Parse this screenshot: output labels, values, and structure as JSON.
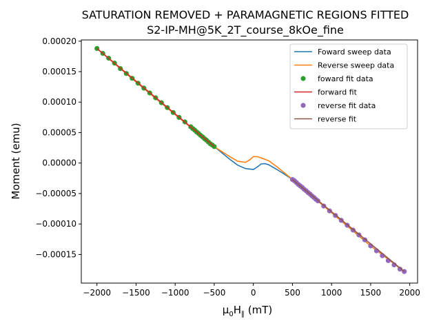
{
  "chart_data": {
    "type": "line",
    "title": "SATURATION REMOVED + PARAMAGNETIC REGIONS FITTED",
    "subtitle": "S2-IP-MH@5K_2T_course_8kOe_fine",
    "xlabel_main": "μ",
    "xlabel_sub0": "0",
    "xlabel_mid": "H",
    "xlabel_sub1": "∥",
    "xlabel_unit": " (mT)",
    "ylabel": "Moment (emu)",
    "xlim": [
      -2200,
      2100
    ],
    "ylim": [
      -0.000197,
      0.000202
    ],
    "xticks": [
      -2000,
      -1500,
      -1000,
      -500,
      0,
      500,
      1000,
      1500,
      2000
    ],
    "xtick_labels": [
      "−2000",
      "−1500",
      "−1000",
      "−500",
      "0",
      "500",
      "1000",
      "1500",
      "2000"
    ],
    "yticks": [
      0.0002,
      0.00015,
      0.0001,
      5e-05,
      0,
      -5e-05,
      -0.0001,
      -0.00015
    ],
    "ytick_labels": [
      "0.00020",
      "0.00015",
      "0.00010",
      "0.00005",
      "0.00000",
      "−0.00005",
      "−0.00010",
      "−0.00015"
    ],
    "grid": false,
    "legend_position": "top-right",
    "colors": {
      "forward_data": "#1f77b4",
      "reverse_data": "#ff7f0e",
      "forward_fit_points": "#2ca02c",
      "forward_fit": "#d62728",
      "reverse_fit_points": "#9467bd",
      "reverse_fit": "#8c564b"
    },
    "series": [
      {
        "name": "Foward sweep data",
        "kind": "line",
        "x": [
          -2000,
          -1500,
          -1000,
          -500,
          -400,
          -300,
          -200,
          -100,
          0,
          50,
          100,
          150,
          200,
          300,
          400,
          500,
          1000,
          1500,
          1930
        ],
        "y": [
          0.000188,
          0.000133,
          7.95e-05,
          2.7e-05,
          1.65e-05,
          6e-06,
          -3.5e-06,
          -9e-06,
          -1.05e-05,
          -6.5e-06,
          -1.5e-06,
          -1e-06,
          -3e-06,
          -1.05e-05,
          -1.85e-05,
          -2.7e-05,
          -8.15e-05,
          -0.000136,
          -0.000178
        ]
      },
      {
        "name": "Reverse sweep data",
        "kind": "line",
        "x": [
          -2000,
          -1500,
          -1000,
          -500,
          -400,
          -300,
          -200,
          -100,
          -50,
          0,
          50,
          100,
          200,
          300,
          400,
          500,
          1000,
          1500,
          1930
        ],
        "y": [
          0.000188,
          0.000133,
          7.95e-05,
          2.7e-05,
          1.85e-05,
          1.05e-05,
          3e-06,
          1e-06,
          5e-06,
          1.05e-05,
          1.05e-05,
          8.5e-06,
          3.5e-06,
          -6e-06,
          -1.65e-05,
          -2.7e-05,
          -8.15e-05,
          -0.000136,
          -0.000178
        ]
      },
      {
        "name": "foward fit data",
        "kind": "points",
        "x": [
          -2000,
          -1925,
          -1850,
          -1775,
          -1700,
          -1625,
          -1550,
          -1475,
          -1400,
          -1325,
          -1250,
          -1175,
          -1100,
          -1025,
          -950,
          -875,
          -800,
          -775,
          -750,
          -725,
          -700,
          -675,
          -650,
          -625,
          -600,
          -575,
          -550,
          -525,
          -500
        ],
        "y": [
          0.000188,
          0.00018,
          0.000172,
          0.000164,
          0.000155,
          0.000147,
          0.000139,
          0.000131,
          0.000123,
          0.000115,
          0.000107,
          9.9e-05,
          9.1e-05,
          8.3e-05,
          7.5e-05,
          6.75e-05,
          5.95e-05,
          5.65e-05,
          5.4e-05,
          5.1e-05,
          4.85e-05,
          4.55e-05,
          4.3e-05,
          4e-05,
          3.75e-05,
          3.45e-05,
          3.15e-05,
          2.95e-05,
          2.7e-05
        ]
      },
      {
        "name": "forward fit",
        "kind": "line",
        "x": [
          -2000,
          -500
        ],
        "y": [
          0.000188,
          2.7e-05
        ]
      },
      {
        "name": "reverse fit data",
        "kind": "points",
        "x": [
          500,
          525,
          550,
          575,
          600,
          625,
          650,
          675,
          700,
          725,
          750,
          775,
          800,
          825,
          900,
          975,
          1050,
          1125,
          1200,
          1275,
          1350,
          1425,
          1500,
          1575,
          1650,
          1725,
          1800,
          1875,
          1930
        ],
        "y": [
          -2.7e-05,
          -2.9e-05,
          -3.2e-05,
          -3.5e-05,
          -3.75e-05,
          -4e-05,
          -4.3e-05,
          -4.55e-05,
          -4.85e-05,
          -5.1e-05,
          -5.4e-05,
          -5.65e-05,
          -5.95e-05,
          -6.2e-05,
          -7.05e-05,
          -7.85e-05,
          -8.6e-05,
          -9.4e-05,
          -0.000102,
          -0.00011,
          -0.000118,
          -0.000126,
          -0.000136,
          -0.000144,
          -0.000152,
          -0.00016,
          -0.000167,
          -0.000174,
          -0.000178
        ]
      },
      {
        "name": "reverse fit",
        "kind": "line",
        "x": [
          500,
          1930
        ],
        "y": [
          -2.7e-05,
          -0.000178
        ]
      }
    ]
  }
}
